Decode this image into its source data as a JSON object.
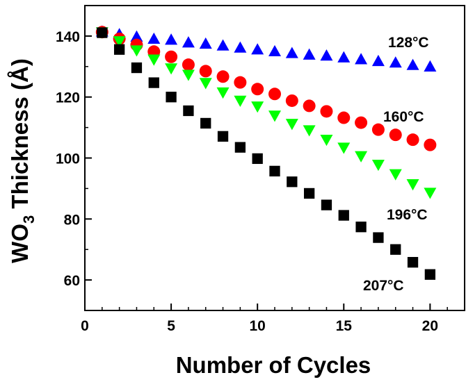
{
  "chart_data": {
    "type": "scatter",
    "xlabel": "Number of Cycles",
    "ylabel": {
      "base": "WO",
      "subscript": "3",
      "rest": " Thickness (Å)"
    },
    "xlim": [
      0,
      22
    ],
    "ylim": [
      50,
      150
    ],
    "xticks": [
      0,
      5,
      10,
      15,
      20
    ],
    "yticks": [
      60,
      80,
      100,
      120,
      140
    ],
    "grid": false,
    "x": [
      1,
      2,
      3,
      4,
      5,
      6,
      7,
      8,
      9,
      10,
      11,
      12,
      13,
      14,
      15,
      16,
      17,
      18,
      19,
      20
    ],
    "series": [
      {
        "name": "128°C",
        "marker": "triangle-up",
        "color": "#0000ff",
        "values": [
          141.5,
          140.6,
          139.8,
          139.1,
          138.8,
          137.9,
          137.5,
          136.9,
          136.2,
          135.6,
          135.0,
          134.4,
          133.9,
          133.6,
          133.0,
          132.4,
          131.8,
          131.3,
          130.5,
          130.0
        ]
      },
      {
        "name": "160°C",
        "marker": "circle",
        "color": "#ff0000",
        "values": [
          141.3,
          139.1,
          137.1,
          134.9,
          133.2,
          130.6,
          128.5,
          126.7,
          124.8,
          122.6,
          121.0,
          118.8,
          117.1,
          115.3,
          113.2,
          111.6,
          109.3,
          107.6,
          106.0,
          104.3
        ]
      },
      {
        "name": "196°C",
        "marker": "triangle-down",
        "color": "#00ff00",
        "values": [
          141.2,
          138.3,
          135.3,
          132.3,
          129.4,
          127.3,
          124.6,
          121.5,
          118.8,
          116.9,
          113.9,
          111.2,
          109.1,
          106.0,
          103.4,
          100.6,
          97.8,
          94.7,
          91.4,
          88.6
        ]
      },
      {
        "name": "207°C",
        "marker": "square",
        "color": "#000000",
        "values": [
          141.1,
          135.6,
          129.6,
          124.7,
          120.0,
          115.5,
          111.4,
          107.1,
          103.5,
          99.8,
          95.7,
          92.2,
          88.4,
          84.6,
          81.2,
          77.4,
          73.9,
          70.0,
          65.8,
          61.8
        ]
      }
    ]
  }
}
